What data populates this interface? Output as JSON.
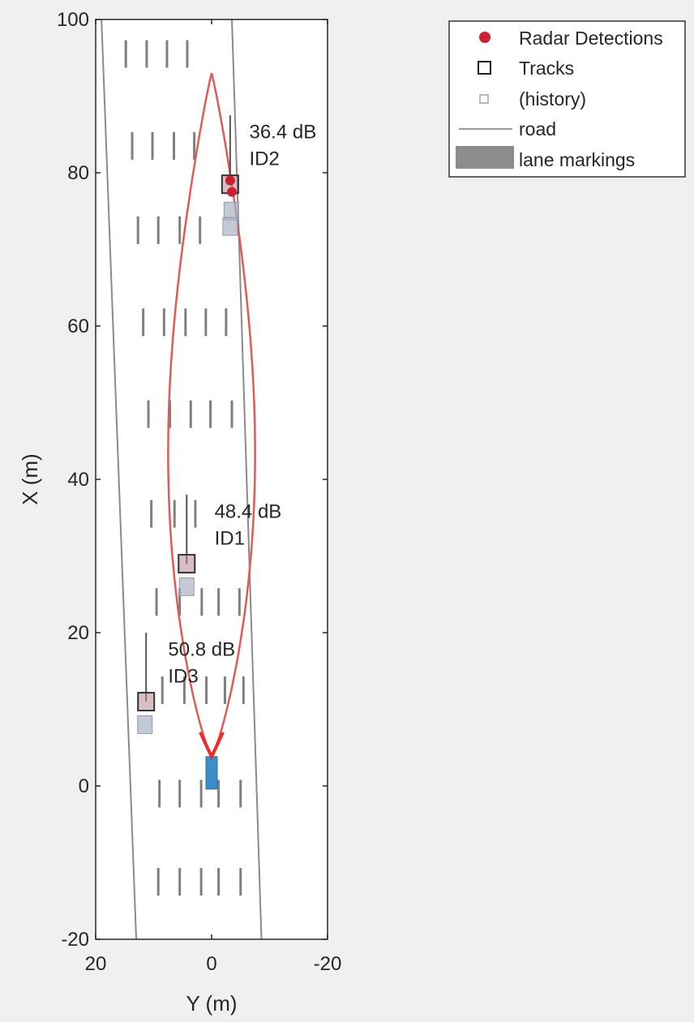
{
  "chart_data": {
    "type": "scatter",
    "title": "",
    "xlabel": "Y (m)",
    "ylabel": "X (m)",
    "xlim": [
      20,
      -20
    ],
    "ylim": [
      -20,
      100
    ],
    "x_ticks": [
      "20",
      "0",
      "-20"
    ],
    "y_ticks": [
      "-20",
      "0",
      "20",
      "40",
      "60",
      "80",
      "100"
    ],
    "x_tick_values": [
      20,
      0,
      -20
    ],
    "y_tick_values": [
      -20,
      0,
      20,
      40,
      60,
      80,
      100
    ],
    "grid": false,
    "legend_position": "top-right-outside",
    "legend": [
      {
        "label": "Radar Detections",
        "marker": "filled-circle",
        "color": "#cc1f2f"
      },
      {
        "label": "Tracks",
        "marker": "square",
        "color": "#222222"
      },
      {
        "label": "(history)",
        "marker": "small-square",
        "color": "#9aa6b8"
      },
      {
        "label": "road",
        "marker": "line",
        "color": "#9a9a9a"
      },
      {
        "label": "lane markings",
        "marker": "patch",
        "color": "#8c8c8c"
      }
    ],
    "series": [
      {
        "name": "Radar Detections",
        "points": [
          [
            -3.2,
            79
          ],
          [
            -3.5,
            77.5
          ]
        ]
      },
      {
        "name": "Tracks",
        "points": [
          [
            -3.2,
            78.5
          ],
          [
            4.3,
            29
          ],
          [
            11.3,
            11
          ]
        ]
      },
      {
        "name": "(history)",
        "points": [
          [
            -3.4,
            75
          ],
          [
            -3.2,
            73
          ],
          [
            4.3,
            26
          ],
          [
            11.5,
            8
          ]
        ]
      }
    ],
    "road_edges": [
      {
        "points": [
          [
            19,
            100
          ],
          [
            13,
            -20
          ]
        ]
      },
      {
        "points": [
          [
            -3.5,
            100
          ],
          [
            -8.6,
            -20
          ]
        ]
      }
    ],
    "lane_marking_rows": [
      {
        "x": 95.5,
        "y": [
          14.8,
          11.2,
          7.7,
          4.2
        ]
      },
      {
        "x": 83.5,
        "y": [
          13.7,
          10.2,
          6.5,
          3.0
        ]
      },
      {
        "x": 72.5,
        "y": [
          12.7,
          9.2,
          5.5,
          2.0
        ]
      },
      {
        "x": 60.5,
        "y": [
          11.8,
          8.2,
          4.5,
          1.0,
          -2.5
        ]
      },
      {
        "x": 48.5,
        "y": [
          10.9,
          7.2,
          3.6,
          0.2,
          -3.5
        ]
      },
      {
        "x": 35.5,
        "y": [
          10.4,
          6.4,
          2.8
        ]
      },
      {
        "x": 24.0,
        "y": [
          9.5,
          5.5,
          1.7,
          -1.2,
          -4.8
        ]
      },
      {
        "x": 12.5,
        "y": [
          8.5,
          4.7,
          0.9,
          -2.3,
          -5.5
        ]
      },
      {
        "x": -1.0,
        "y": [
          9.0,
          5.5,
          1.8,
          -1.2,
          -5.0
        ]
      },
      {
        "x": -12.5,
        "y": [
          9.2,
          5.5,
          1.8,
          -1.2,
          -5.0
        ]
      }
    ],
    "coverage_boundary": {
      "vertex": [
        0,
        4
      ],
      "far_x": 93,
      "half_width_max": 7.5,
      "color": "#e05a5a"
    },
    "ego_vehicle": {
      "y": 0,
      "x": 1.5,
      "color": "#3a8fc8"
    },
    "annotations": [
      {
        "text": "36.4 dB",
        "y": -6.5,
        "x": 84.5
      },
      {
        "text": "ID2",
        "y": -6.5,
        "x": 81
      },
      {
        "text": "48.4 dB",
        "y": -0.5,
        "x": 35
      },
      {
        "text": "ID1",
        "y": -0.5,
        "x": 31.5
      },
      {
        "text": "50.8 dB",
        "y": 7.5,
        "x": 17
      },
      {
        "text": "ID3",
        "y": 7.5,
        "x": 13.5
      }
    ]
  }
}
